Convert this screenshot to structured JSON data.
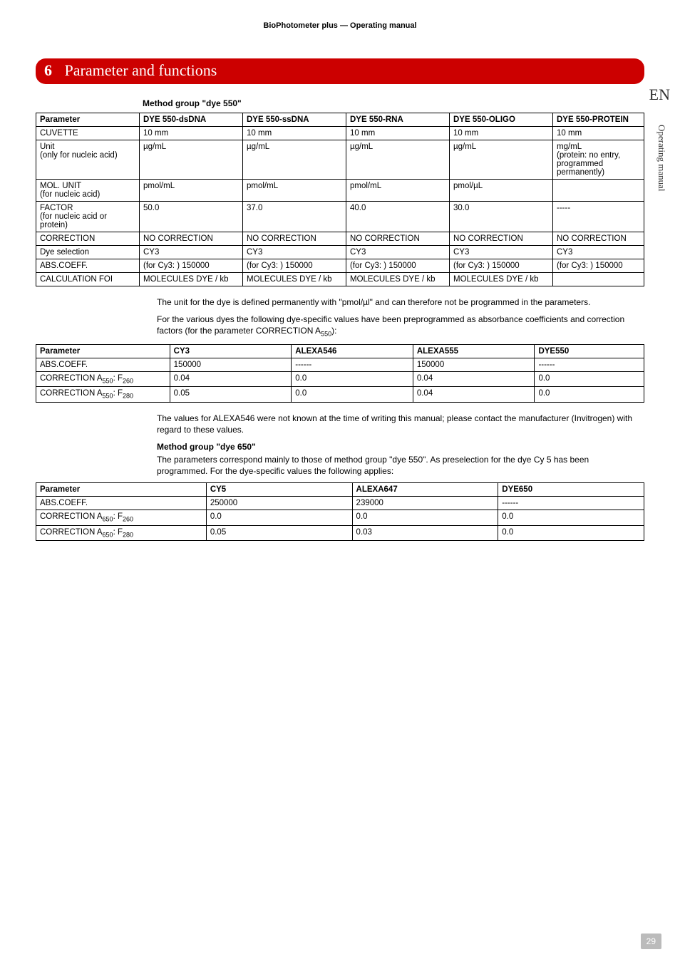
{
  "header": "BioPhotometer plus  —  Operating manual",
  "chapter": {
    "num": "6",
    "title": "Parameter and functions"
  },
  "side_en": "EN",
  "side_label": "Operating manual",
  "section1_title": "Method group \"dye 550\"",
  "table1": {
    "head": [
      "Parameter",
      "DYE 550-dsDNA",
      "DYE 550-ssDNA",
      "DYE 550-RNA",
      "DYE 550-OLIGO",
      "DYE 550-PROTEIN"
    ],
    "rows": [
      [
        "CUVETTE",
        "10 mm",
        "10 mm",
        "10 mm",
        "10 mm",
        "10 mm"
      ],
      [
        "Unit\n(only for nucleic acid)",
        "µg/mL",
        "µg/mL",
        "µg/mL",
        "µg/mL",
        "mg/mL\n(protein: no entry, programmed permanently)"
      ],
      [
        "MOL. UNIT\n(for nucleic acid)",
        "pmol/mL",
        "pmol/mL",
        "pmol/mL",
        "pmol/µL",
        ""
      ],
      [
        "FACTOR\n(for nucleic acid or protein)",
        "50.0",
        "37.0",
        "40.0",
        "30.0",
        "-----"
      ],
      [
        "CORRECTION",
        "NO CORRECTION",
        "NO CORRECTION",
        "NO CORRECTION",
        "NO CORRECTION",
        "NO CORRECTION"
      ],
      [
        "Dye selection",
        "CY3",
        "CY3",
        "CY3",
        "CY3",
        "CY3"
      ],
      [
        "ABS.COEFF.",
        "(for Cy3: ) 150000",
        "(for Cy3: ) 150000",
        "(for Cy3: ) 150000",
        "(for Cy3: ) 150000",
        "(for Cy3: ) 150000"
      ],
      [
        "CALCULATION FOI",
        "MOLECULES DYE / kb",
        "MOLECULES DYE / kb",
        "MOLECULES DYE / kb",
        "MOLECULES DYE / kb",
        ""
      ]
    ]
  },
  "para1": "The unit for the dye is defined permanently with \"pmol/µl\" and can therefore not be programmed in the parameters.",
  "para2a": "For the various dyes the following dye-specific values have been preprogrammed as absorbance coefficients and correction factors (for the parameter CORRECTION A",
  "para2b": "):",
  "table2": {
    "head": [
      "Parameter",
      "CY3",
      "ALEXA546",
      "ALEXA555",
      "DYE550"
    ],
    "rows": [
      [
        "ABS.COEFF.",
        "150000",
        "------",
        "150000",
        "------"
      ],
      [
        "CORRECTION A₅₅₀: F₂₆₀",
        "0.04",
        "0.0",
        "0.04",
        "0.0"
      ],
      [
        "CORRECTION A₅₅₀: F₂₈₀",
        "0.05",
        "0.0",
        "0.04",
        "0.0"
      ]
    ]
  },
  "para3": "The values for ALEXA546 were not known at the time of writing this manual; please contact the manufacturer (Invitrogen) with regard to these values.",
  "section2_title": "Method group \"dye 650\"",
  "para4": "The parameters correspond mainly to those of method group \"dye 550\". As preselection for the dye Cy 5 has been programmed. For the dye-specific values the following applies:",
  "table3": {
    "head": [
      "Parameter",
      "CY5",
      "ALEXA647",
      "DYE650"
    ],
    "rows": [
      [
        "ABS.COEFF.",
        "250000",
        "239000",
        "------"
      ],
      [
        "CORRECTION A₆₅₀: F₂₆₀",
        "0.0",
        "0.0",
        "0.0"
      ],
      [
        "CORRECTION A₆₅₀: F₂₈₀",
        "0.05",
        "0.03",
        "0.0"
      ]
    ]
  },
  "pagenum": "29"
}
